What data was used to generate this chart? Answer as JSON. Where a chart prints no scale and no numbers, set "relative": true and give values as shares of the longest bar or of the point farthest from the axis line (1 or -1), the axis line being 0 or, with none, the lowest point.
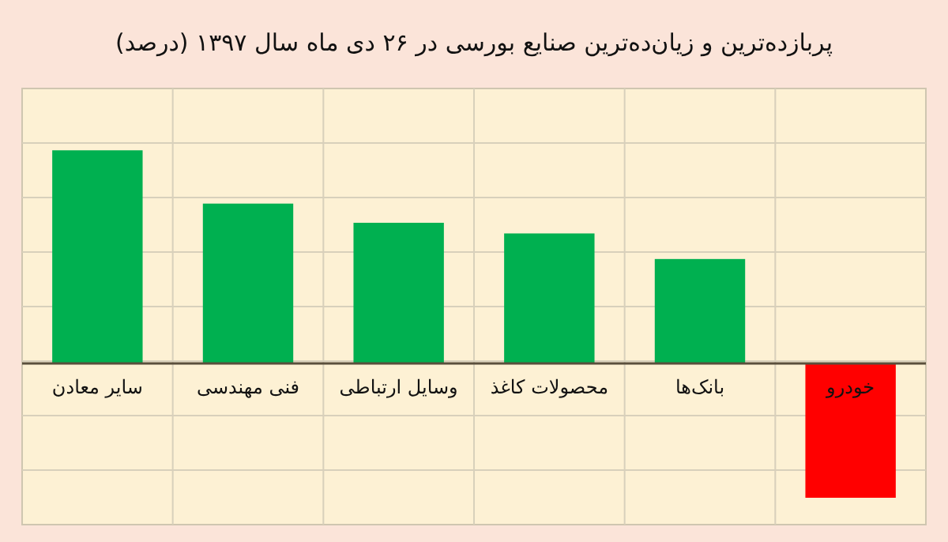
{
  "chart_data": {
    "type": "bar",
    "title": "پربازده‌ترین و زیان‌ده‌ترین صنایع بورسی در ۲۶ دی ماه سال ۱۳۹۷ (درصد)",
    "relative": true,
    "grid": true,
    "categories": [
      "سایر معادن",
      "فنی مهندسی",
      "وسایل ارتباطی",
      "محصولات کاغذ",
      "بانک‌ها",
      "خودرو"
    ],
    "values": [
      1,
      0.75,
      0.66,
      0.61,
      0.49,
      -0.63
    ],
    "colors": [
      "#00b050",
      "#00b050",
      "#00b050",
      "#00b050",
      "#00b050",
      "#ff0000"
    ]
  }
}
